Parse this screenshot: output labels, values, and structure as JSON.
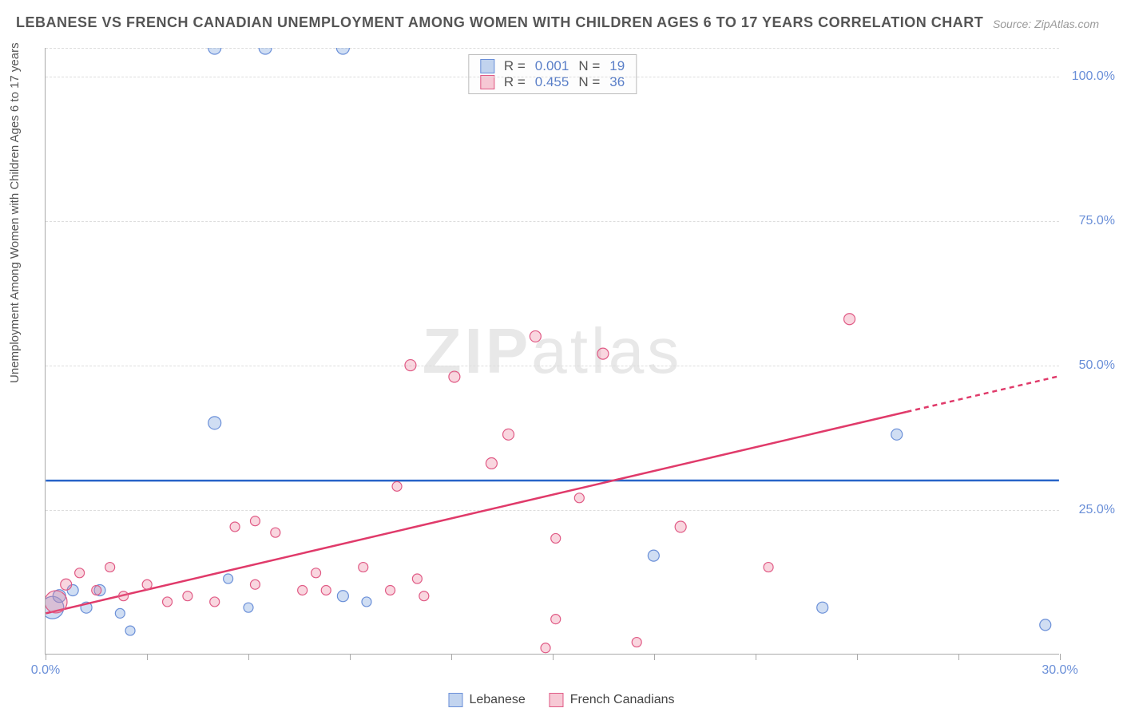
{
  "title": "LEBANESE VS FRENCH CANADIAN UNEMPLOYMENT AMONG WOMEN WITH CHILDREN AGES 6 TO 17 YEARS CORRELATION CHART",
  "source": "Source: ZipAtlas.com",
  "y_axis_label": "Unemployment Among Women with Children Ages 6 to 17 years",
  "watermark": {
    "zip": "ZIP",
    "atlas": "atlas"
  },
  "chart": {
    "type": "scatter",
    "background_color": "#ffffff",
    "grid_color": "#dddddd",
    "axis_color": "#aaaaaa",
    "tick_label_color": "#6a8fd8",
    "xlim": [
      0,
      30
    ],
    "ylim": [
      0,
      105
    ],
    "x_ticks": [
      0,
      3,
      6,
      9,
      12,
      15,
      18,
      21,
      24,
      27,
      30
    ],
    "x_tick_labels": {
      "0": "0.0%",
      "30": "30.0%"
    },
    "y_gridlines": [
      25,
      50,
      75,
      100,
      105
    ],
    "y_tick_labels": {
      "25": "25.0%",
      "50": "50.0%",
      "75": "75.0%",
      "100": "100.0%"
    },
    "series": [
      {
        "name": "Lebanese",
        "color_fill": "rgba(120,160,220,0.35)",
        "color_stroke": "#6a8fd8",
        "trend": {
          "slope": 0.001,
          "intercept": 30,
          "dashed_from_x": 30
        },
        "trend_color": "#2864c8",
        "points": [
          {
            "x": 0.2,
            "y": 8,
            "r": 14
          },
          {
            "x": 0.4,
            "y": 10,
            "r": 8
          },
          {
            "x": 0.8,
            "y": 11,
            "r": 7
          },
          {
            "x": 1.2,
            "y": 8,
            "r": 7
          },
          {
            "x": 1.6,
            "y": 11,
            "r": 7
          },
          {
            "x": 2.2,
            "y": 7,
            "r": 6
          },
          {
            "x": 2.5,
            "y": 4,
            "r": 6
          },
          {
            "x": 5.0,
            "y": 105,
            "r": 8
          },
          {
            "x": 5.0,
            "y": 40,
            "r": 8
          },
          {
            "x": 6.5,
            "y": 105,
            "r": 8
          },
          {
            "x": 8.8,
            "y": 105,
            "r": 8
          },
          {
            "x": 5.4,
            "y": 13,
            "r": 6
          },
          {
            "x": 6.0,
            "y": 8,
            "r": 6
          },
          {
            "x": 8.8,
            "y": 10,
            "r": 7
          },
          {
            "x": 9.5,
            "y": 9,
            "r": 6
          },
          {
            "x": 18.0,
            "y": 17,
            "r": 7
          },
          {
            "x": 23.0,
            "y": 8,
            "r": 7
          },
          {
            "x": 25.2,
            "y": 38,
            "r": 7
          },
          {
            "x": 29.6,
            "y": 5,
            "r": 7
          }
        ]
      },
      {
        "name": "French Canadians",
        "color_fill": "rgba(235,120,150,0.30)",
        "color_stroke": "#e05a85",
        "trend": {
          "slope": 1.37,
          "intercept": 7,
          "dashed_from_x": 25.5
        },
        "trend_color": "#e03a6a",
        "points": [
          {
            "x": 0.3,
            "y": 9,
            "r": 14
          },
          {
            "x": 0.6,
            "y": 12,
            "r": 7
          },
          {
            "x": 1.0,
            "y": 14,
            "r": 6
          },
          {
            "x": 1.5,
            "y": 11,
            "r": 6
          },
          {
            "x": 1.9,
            "y": 15,
            "r": 6
          },
          {
            "x": 2.3,
            "y": 10,
            "r": 6
          },
          {
            "x": 3.0,
            "y": 12,
            "r": 6
          },
          {
            "x": 3.6,
            "y": 9,
            "r": 6
          },
          {
            "x": 4.2,
            "y": 10,
            "r": 6
          },
          {
            "x": 5.0,
            "y": 9,
            "r": 6
          },
          {
            "x": 5.6,
            "y": 22,
            "r": 6
          },
          {
            "x": 6.2,
            "y": 23,
            "r": 6
          },
          {
            "x": 6.2,
            "y": 12,
            "r": 6
          },
          {
            "x": 6.8,
            "y": 21,
            "r": 6
          },
          {
            "x": 7.6,
            "y": 11,
            "r": 6
          },
          {
            "x": 8.0,
            "y": 14,
            "r": 6
          },
          {
            "x": 8.3,
            "y": 11,
            "r": 6
          },
          {
            "x": 9.4,
            "y": 15,
            "r": 6
          },
          {
            "x": 10.2,
            "y": 11,
            "r": 6
          },
          {
            "x": 10.4,
            "y": 29,
            "r": 6
          },
          {
            "x": 10.8,
            "y": 50,
            "r": 7
          },
          {
            "x": 11.0,
            "y": 13,
            "r": 6
          },
          {
            "x": 11.2,
            "y": 10,
            "r": 6
          },
          {
            "x": 12.1,
            "y": 48,
            "r": 7
          },
          {
            "x": 13.2,
            "y": 33,
            "r": 7
          },
          {
            "x": 13.7,
            "y": 38,
            "r": 7
          },
          {
            "x": 14.5,
            "y": 55,
            "r": 7
          },
          {
            "x": 14.8,
            "y": 1,
            "r": 6
          },
          {
            "x": 15.1,
            "y": 20,
            "r": 6
          },
          {
            "x": 15.1,
            "y": 6,
            "r": 6
          },
          {
            "x": 15.8,
            "y": 27,
            "r": 6
          },
          {
            "x": 16.5,
            "y": 52,
            "r": 7
          },
          {
            "x": 17.5,
            "y": 2,
            "r": 6
          },
          {
            "x": 18.8,
            "y": 22,
            "r": 7
          },
          {
            "x": 21.4,
            "y": 15,
            "r": 6
          },
          {
            "x": 23.8,
            "y": 58,
            "r": 7
          }
        ]
      }
    ]
  },
  "corr_box": {
    "rows": [
      {
        "swatch_fill": "rgba(120,160,220,0.45)",
        "swatch_border": "#6a8fd8",
        "r_label": "R =",
        "r": "0.001",
        "n_label": "N =",
        "n": "19"
      },
      {
        "swatch_fill": "rgba(235,120,150,0.40)",
        "swatch_border": "#e05a85",
        "r_label": "R =",
        "r": "0.455",
        "n_label": "N =",
        "n": "36"
      }
    ]
  },
  "bottom_legend": [
    {
      "swatch_fill": "rgba(120,160,220,0.45)",
      "swatch_border": "#6a8fd8",
      "label": "Lebanese"
    },
    {
      "swatch_fill": "rgba(235,120,150,0.40)",
      "swatch_border": "#e05a85",
      "label": "French Canadians"
    }
  ]
}
